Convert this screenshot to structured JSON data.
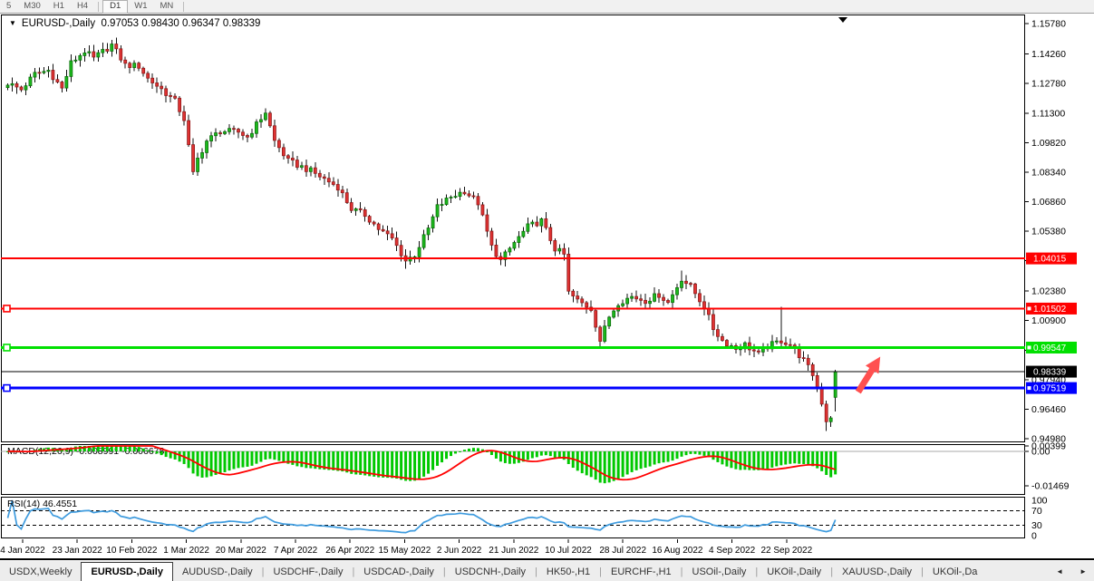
{
  "toolbar": {
    "groups": [
      [
        "5",
        "M30",
        "H1",
        "H4"
      ],
      [
        "D1",
        "W1",
        "MN"
      ]
    ],
    "active": "D1"
  },
  "title": {
    "dropdown_icon": "▼",
    "symbol": "EURUSD-,Daily",
    "open": "0.97053",
    "high": "0.98430",
    "low": "0.96347",
    "close": "0.98339"
  },
  "chart_data": {
    "type": "candlestick",
    "symbol": "EURUSD-",
    "timeframe": "Daily",
    "last_bar_ohlc": [
      0.97053,
      0.9843,
      0.96347,
      0.98339
    ],
    "bars": 184,
    "ylim": [
      0.94798,
      1.16195
    ],
    "close_path_anchors": [
      [
        0,
        1.128
      ],
      [
        3,
        1.1248
      ],
      [
        6,
        1.1326
      ],
      [
        9,
        1.1344
      ],
      [
        12,
        1.1252
      ],
      [
        14,
        1.1381
      ],
      [
        17,
        1.144
      ],
      [
        19,
        1.1404
      ],
      [
        23,
        1.1472
      ],
      [
        26,
        1.1371
      ],
      [
        29,
        1.1365
      ],
      [
        31,
        1.1303
      ],
      [
        34,
        1.125
      ],
      [
        37,
        1.119
      ],
      [
        39,
        1.11
      ],
      [
        41,
        1.0825
      ],
      [
        42,
        1.09
      ],
      [
        44,
        1.099
      ],
      [
        47,
        1.104
      ],
      [
        51,
        1.1035
      ],
      [
        53,
        1.101
      ],
      [
        57,
        1.1135
      ],
      [
        59,
        1.099
      ],
      [
        62,
        1.089
      ],
      [
        64,
        1.087
      ],
      [
        67,
        1.084
      ],
      [
        70,
        1.08
      ],
      [
        73,
        1.076
      ],
      [
        76,
        1.065
      ],
      [
        79,
        1.062
      ],
      [
        82,
        1.055
      ],
      [
        85,
        1.05
      ],
      [
        88,
        1.039
      ],
      [
        90,
        1.042
      ],
      [
        93,
        1.055
      ],
      [
        95,
        1.066
      ],
      [
        98,
        1.071
      ],
      [
        101,
        1.074
      ],
      [
        104,
        1.068
      ],
      [
        107,
        1.046
      ],
      [
        109,
        1.039
      ],
      [
        112,
        1.048
      ],
      [
        115,
        1.056
      ],
      [
        118,
        1.059
      ],
      [
        121,
        1.045
      ],
      [
        123,
        1.042
      ],
      [
        124,
        1.023
      ],
      [
        126,
        1.019
      ],
      [
        129,
        1.015
      ],
      [
        131,
        0.999
      ],
      [
        133,
        1.011
      ],
      [
        135,
        1.018
      ],
      [
        138,
        1.021
      ],
      [
        141,
        1.019
      ],
      [
        144,
        1.022
      ],
      [
        146,
        1.018
      ],
      [
        149,
        1.03
      ],
      [
        151,
        1.026
      ],
      [
        154,
        1.016
      ],
      [
        156,
        1.005
      ],
      [
        158,
        0.999
      ],
      [
        161,
        0.995
      ],
      [
        163,
        0.997
      ],
      [
        166,
        0.992
      ],
      [
        168,
        0.996
      ],
      [
        171,
        0.999
      ],
      [
        173,
        0.997
      ],
      [
        176,
        0.989
      ],
      [
        178,
        0.982
      ],
      [
        180,
        0.968
      ],
      [
        181,
        0.959
      ],
      [
        182,
        0.961
      ],
      [
        183,
        0.98339
      ]
    ],
    "wick_overrides": [
      {
        "i": 88,
        "low": 1.035
      },
      {
        "i": 149,
        "high": 1.034
      },
      {
        "i": 171,
        "high": 1.016
      },
      {
        "i": 181,
        "low": 0.9536
      }
    ],
    "price_ticks": [
      "1.15780",
      "1.14260",
      "1.12780",
      "1.11300",
      "1.09820",
      "1.08340",
      "1.06860",
      "1.05380",
      "1.03900",
      "1.02380",
      "1.00900",
      "0.99420",
      "0.97940",
      "0.96460",
      "0.94980"
    ],
    "date_ticks": [
      "4 Jan 2022",
      "23 Jan 2022",
      "10 Feb 2022",
      "1 Mar 2022",
      "20 Mar 2022",
      "7 Apr 2022",
      "26 Apr 2022",
      "15 May 2022",
      "2 Jun 2022",
      "21 Jun 2022",
      "10 Jul 2022",
      "28 Jul 2022",
      "16 Aug 2022",
      "4 Sep 2022",
      "22 Sep 2022"
    ],
    "h_lines": [
      {
        "price": 1.04015,
        "label": "1.04015",
        "color": "#FF0000",
        "width": 2,
        "handle": false
      },
      {
        "price": 1.01502,
        "label": "1.01502",
        "color": "#FF0000",
        "width": 2,
        "handle": true
      },
      {
        "price": 0.99547,
        "label": "0.99547",
        "color": "#00E000",
        "width": 3,
        "handle": true
      },
      {
        "price": 0.98339,
        "label": "0.98339",
        "color": "#000000",
        "width": 1,
        "handle": false
      },
      {
        "price": 0.97519,
        "label": "0.97519",
        "color": "#0000FF",
        "width": 3,
        "handle": true
      }
    ],
    "indicators": [
      {
        "name": "MACD",
        "label": "MACD(12,26,9) -0.008991 -0.006678",
        "params": [
          12,
          26,
          9
        ],
        "main": -0.008991,
        "signal": -0.006678,
        "axis_ticks": [
          {
            "text": "0.00399",
            "value": 0.00399
          },
          {
            "text": "0.00",
            "value": 0
          },
          {
            "text": "-0.01469",
            "value": -0.01469
          }
        ]
      },
      {
        "name": "RSI",
        "label": "RSI(14) 46.4551",
        "params": [
          14
        ],
        "value": 46.4551,
        "axis_ticks": [
          {
            "text": "100",
            "value": 100
          },
          {
            "text": "70",
            "value": 70
          },
          {
            "text": "30",
            "value": 30
          },
          {
            "text": "0",
            "value": 0
          }
        ],
        "levels": [
          70,
          30
        ]
      }
    ],
    "colors": {
      "bull": "#1CBB1C",
      "bull_border": "#0B6E0B",
      "bear": "#E03232",
      "bear_border": "#8F1A1A",
      "wick": "#111111",
      "macd_hist": "#00C800",
      "macd_signal": "#FF0000",
      "rsi": "#3E9BDE",
      "arrow": "#FF5050"
    }
  },
  "tabs": {
    "items": [
      "USDX,Weekly",
      "EURUSD-,Daily",
      "AUDUSD-,Daily",
      "USDCHF-,Daily",
      "USDCAD-,Daily",
      "USDCNH-,Daily",
      "HK50-,H1",
      "EURCHF-,H1",
      "USOil-,Daily",
      "UKOil-,Daily",
      "XAUUSD-,Daily",
      "UKOil-,Da"
    ],
    "active_index": 1,
    "scroll_left": "◄",
    "scroll_right": "►"
  }
}
